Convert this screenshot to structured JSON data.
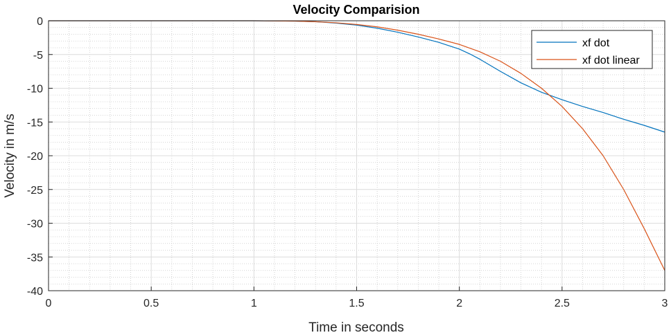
{
  "chart_data": {
    "type": "line",
    "title": "Velocity Comparision",
    "xlabel": "Time in seconds",
    "ylabel": "Velocity in m/s",
    "xlim": [
      0,
      3
    ],
    "ylim": [
      -40,
      0
    ],
    "x_ticks": [
      0,
      0.5,
      1,
      1.5,
      2,
      2.5,
      3
    ],
    "x_tick_labels": [
      "0",
      "0.5",
      "1",
      "1.5",
      "2",
      "2.5",
      "3"
    ],
    "y_ticks": [
      0,
      -5,
      -10,
      -15,
      -20,
      -25,
      -30,
      -35,
      -40
    ],
    "y_tick_labels": [
      "0",
      "-5",
      "-10",
      "-15",
      "-20",
      "-25",
      "-30",
      "-35",
      "-40"
    ],
    "grid": true,
    "minor_grid": true,
    "legend_position": "top-right",
    "series": [
      {
        "name": "xf dot",
        "color": "#0072BD",
        "x": [
          0,
          0.5,
          1.0,
          1.2,
          1.3,
          1.4,
          1.5,
          1.6,
          1.7,
          1.8,
          1.9,
          2.0,
          2.05,
          2.1,
          2.2,
          2.3,
          2.4,
          2.5,
          2.6,
          2.7,
          2.8,
          2.9,
          3.0
        ],
        "values": [
          0,
          0,
          0,
          -0.05,
          -0.15,
          -0.35,
          -0.65,
          -1.1,
          -1.7,
          -2.4,
          -3.2,
          -4.2,
          -4.9,
          -5.7,
          -7.5,
          -9.2,
          -10.6,
          -11.7,
          -12.7,
          -13.6,
          -14.6,
          -15.5,
          -16.5
        ]
      },
      {
        "name": "xf dot linear",
        "color": "#D95319",
        "x": [
          0,
          0.5,
          1.0,
          1.2,
          1.3,
          1.4,
          1.5,
          1.6,
          1.7,
          1.8,
          1.9,
          2.0,
          2.1,
          2.2,
          2.3,
          2.4,
          2.5,
          2.6,
          2.7,
          2.8,
          2.9,
          3.0
        ],
        "values": [
          0,
          0,
          0,
          -0.05,
          -0.15,
          -0.3,
          -0.55,
          -0.9,
          -1.4,
          -2.0,
          -2.7,
          -3.5,
          -4.6,
          -6.0,
          -7.8,
          -10.0,
          -12.7,
          -16.0,
          -20.0,
          -25.0,
          -30.8,
          -37.0
        ]
      }
    ]
  }
}
